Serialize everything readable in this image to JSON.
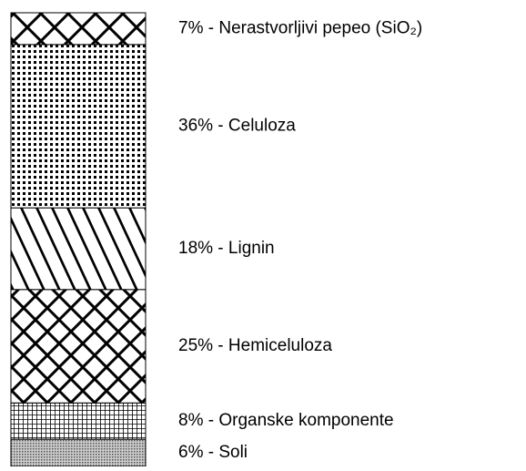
{
  "chart_data": {
    "type": "bar",
    "stacked": true,
    "values": [
      6,
      8,
      25,
      18,
      36,
      7
    ],
    "value_labels": [
      "6% - Soli",
      "8% - Organske komponente",
      "25% - Hemiceluloza",
      "18% - Lignin",
      "36% - Celuloza",
      "7% - Nerastvorljivi pepeo (SiO₂)"
    ],
    "ylim": [
      0,
      100
    ]
  }
}
